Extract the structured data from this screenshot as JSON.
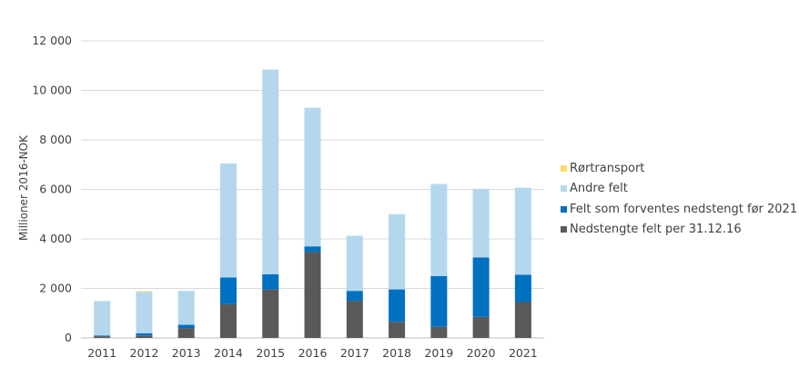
{
  "chart_data": {
    "type": "bar",
    "stacked": true,
    "title": "",
    "xlabel": "",
    "ylabel": "Millioner 2016-NOK",
    "ylim": [
      0,
      12000
    ],
    "yticks": [
      0,
      2000,
      4000,
      6000,
      8000,
      10000,
      12000
    ],
    "ytick_labels": [
      "0",
      "2 000",
      "4 000",
      "6 000",
      "8 000",
      "10 000",
      "12 000"
    ],
    "grid": true,
    "legend_position": "right",
    "categories": [
      "2011",
      "2012",
      "2013",
      "2014",
      "2015",
      "2016",
      "2017",
      "2018",
      "2019",
      "2020",
      "2021"
    ],
    "series": [
      {
        "name": "Nedstengte felt per 31.12.16",
        "color": "#595959",
        "values": [
          70,
          100,
          400,
          1370,
          1950,
          3470,
          1500,
          650,
          450,
          850,
          1450
        ]
      },
      {
        "name": "Felt som forventes nedstengt før 2021",
        "color": "#0070c0",
        "values": [
          30,
          90,
          130,
          1070,
          620,
          230,
          400,
          1310,
          2050,
          2400,
          1100
        ]
      },
      {
        "name": "Andre felt",
        "color": "#b4d7ee",
        "values": [
          1390,
          1670,
          1370,
          4610,
          8270,
          5600,
          2230,
          3040,
          3720,
          2770,
          3520
        ]
      },
      {
        "name": "Rørtransport",
        "color": "#ffd966",
        "values": [
          0,
          30,
          0,
          0,
          0,
          0,
          0,
          0,
          0,
          0,
          0
        ]
      }
    ]
  }
}
